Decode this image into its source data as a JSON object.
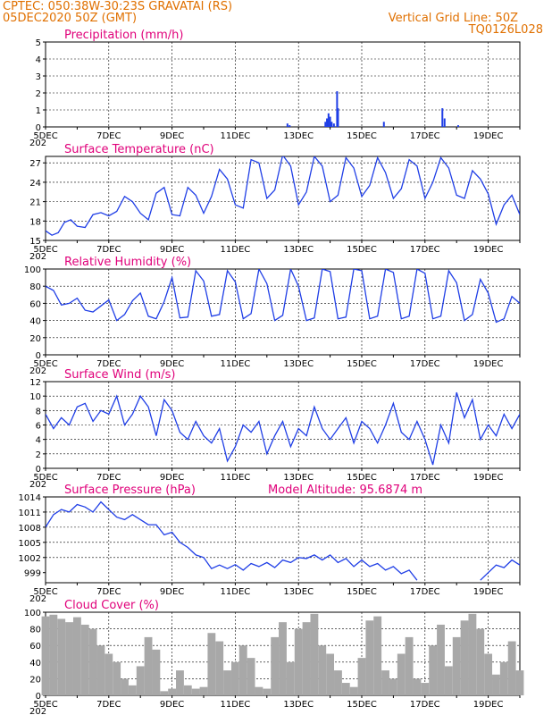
{
  "colors": {
    "header": "#e07000",
    "title": "#e0007a",
    "series": "#1f3ee6",
    "cloud": "#a8a8a8",
    "grid": "#000000"
  },
  "header": {
    "line1_left": "CPTEC:   050:38W-30:23S   GRAVATAI (RS)",
    "line2_left": "05DEC2020 50Z (GMT)",
    "line2_right": "Vertical Grid Line: 50Z",
    "line3_right": "TQ0126L028"
  },
  "x_tick_labels": [
    "5DEC",
    "7DEC",
    "9DEC",
    "11DEC",
    "13DEC",
    "15DEC",
    "17DEC",
    "19DEC"
  ],
  "x_sub_label": "202",
  "panels": {
    "precip": {
      "title": "Precipitation  (mm/h)",
      "ylim": [
        0,
        5
      ],
      "yticks": [
        "0",
        "1",
        "2",
        "3",
        "4",
        "5"
      ]
    },
    "temp": {
      "title": "Surface Temperature (nC)",
      "ylim": [
        15,
        28
      ],
      "yticks": [
        "15",
        "18",
        "21",
        "24",
        "27"
      ]
    },
    "rh": {
      "title": "Relative Humidity  (%)",
      "ylim": [
        0,
        100
      ],
      "yticks": [
        "0",
        "20",
        "40",
        "60",
        "80",
        "100"
      ]
    },
    "wind": {
      "title": "Surface Wind  (m/s)",
      "ylim": [
        0,
        12
      ],
      "yticks": [
        "0",
        "2",
        "4",
        "6",
        "8",
        "10",
        "12"
      ]
    },
    "pres": {
      "title": "Surface Pressure (hPa)",
      "altitude": "Model Altitude: 95.6874  m",
      "ylim": [
        997,
        1014
      ],
      "yticks": [
        "999",
        "1002",
        "1005",
        "1008",
        "1011",
        "1014"
      ]
    },
    "cloud": {
      "title": "Cloud Cover (%)",
      "ylim": [
        0,
        100
      ],
      "yticks": [
        "0",
        "20",
        "40",
        "60",
        "80",
        "100"
      ]
    }
  },
  "chart_data": [
    {
      "type": "bar",
      "title": "Precipitation  (mm/h)",
      "x_unit": "days since 5DEC",
      "x": [
        7.65,
        7.72,
        8.85,
        8.9,
        8.95,
        9.0,
        9.05,
        9.12,
        9.22,
        9.25,
        10.7,
        12.55,
        12.62,
        13.05
      ],
      "values": [
        0.2,
        0.1,
        0.3,
        0.5,
        0.8,
        0.6,
        0.3,
        0.2,
        2.1,
        1.1,
        0.3,
        1.1,
        0.5,
        0.1
      ],
      "ylim": [
        0,
        5
      ]
    },
    {
      "type": "line",
      "title": "Surface Temperature (nC)",
      "x_unit": "days since 5DEC",
      "x": [
        0,
        0.2,
        0.4,
        0.6,
        0.8,
        1.0,
        1.25,
        1.5,
        1.75,
        2.0,
        2.25,
        2.5,
        2.75,
        3.0,
        3.25,
        3.5,
        3.75,
        4.0,
        4.25,
        4.5,
        4.75,
        5.0,
        5.25,
        5.5,
        5.75,
        6.0,
        6.25,
        6.5,
        6.75,
        7.0,
        7.25,
        7.5,
        7.75,
        8.0,
        8.25,
        8.5,
        8.75,
        9.0,
        9.25,
        9.5,
        9.75,
        10.0,
        10.25,
        10.5,
        10.75,
        11.0,
        11.25,
        11.5,
        11.75,
        12.0,
        12.25,
        12.5,
        12.75,
        13.0,
        13.25,
        13.5,
        13.75,
        14.0,
        14.25,
        14.5,
        14.75,
        15.0
      ],
      "values": [
        16.5,
        15.8,
        16.2,
        17.8,
        18.2,
        17.2,
        17.0,
        19.0,
        19.3,
        18.8,
        19.5,
        21.8,
        21.0,
        19.2,
        18.2,
        22.3,
        23.2,
        19.0,
        18.8,
        23.2,
        22.0,
        19.2,
        21.8,
        26.0,
        24.5,
        20.5,
        20.0,
        27.5,
        27.0,
        21.5,
        22.8,
        28.2,
        26.5,
        20.5,
        22.5,
        28.0,
        26.5,
        21.0,
        22.0,
        27.8,
        26.2,
        21.8,
        23.5,
        27.8,
        25.5,
        21.5,
        23.0,
        27.5,
        26.5,
        21.5,
        24.0,
        27.8,
        26.2,
        22.0,
        21.5,
        25.8,
        24.5,
        22.2,
        17.5,
        20.5,
        22.0,
        19.0
      ],
      "ylim": [
        15,
        28
      ]
    },
    {
      "type": "line",
      "title": "Relative Humidity  (%)",
      "x_unit": "days since 5DEC",
      "x": [
        0,
        0.25,
        0.5,
        0.75,
        1.0,
        1.25,
        1.5,
        1.75,
        2.0,
        2.25,
        2.5,
        2.75,
        3.0,
        3.25,
        3.5,
        3.75,
        4.0,
        4.25,
        4.5,
        4.75,
        5.0,
        5.25,
        5.5,
        5.75,
        6.0,
        6.25,
        6.5,
        6.75,
        7.0,
        7.25,
        7.5,
        7.75,
        8.0,
        8.25,
        8.5,
        8.75,
        9.0,
        9.25,
        9.5,
        9.75,
        10.0,
        10.25,
        10.5,
        10.75,
        11.0,
        11.25,
        11.5,
        11.75,
        12.0,
        12.25,
        12.5,
        12.75,
        13.0,
        13.25,
        13.5,
        13.75,
        14.0,
        14.25,
        14.5,
        14.75,
        15.0
      ],
      "values": [
        80,
        75,
        58,
        60,
        66,
        52,
        50,
        57,
        64,
        40,
        47,
        63,
        72,
        45,
        42,
        62,
        90,
        43,
        44,
        98,
        86,
        45,
        47,
        98,
        85,
        42,
        48,
        100,
        83,
        40,
        46,
        100,
        80,
        40,
        43,
        100,
        97,
        42,
        44,
        100,
        98,
        42,
        45,
        100,
        96,
        42,
        45,
        100,
        95,
        42,
        45,
        98,
        84,
        40,
        47,
        88,
        72,
        38,
        42,
        68,
        60
      ],
      "ylim": [
        0,
        100
      ]
    },
    {
      "type": "line",
      "title": "Surface Wind  (m/s)",
      "x_unit": "days since 5DEC",
      "x": [
        0,
        0.25,
        0.5,
        0.75,
        1.0,
        1.25,
        1.5,
        1.75,
        2.0,
        2.25,
        2.5,
        2.75,
        3.0,
        3.25,
        3.5,
        3.75,
        4.0,
        4.25,
        4.5,
        4.75,
        5.0,
        5.25,
        5.5,
        5.75,
        6.0,
        6.25,
        6.5,
        6.75,
        7.0,
        7.25,
        7.5,
        7.75,
        8.0,
        8.25,
        8.5,
        8.75,
        9.0,
        9.25,
        9.5,
        9.75,
        10.0,
        10.25,
        10.5,
        10.75,
        11.0,
        11.25,
        11.5,
        11.75,
        12.0,
        12.25,
        12.5,
        12.75,
        13.0,
        13.25,
        13.5,
        13.75,
        14.0,
        14.25,
        14.5,
        14.75,
        15.0
      ],
      "values": [
        7.5,
        5.5,
        7.0,
        6.0,
        8.5,
        9.0,
        6.5,
        8.0,
        7.5,
        10.0,
        6.0,
        7.5,
        10.0,
        8.5,
        4.5,
        9.5,
        8.0,
        5.0,
        4.0,
        6.5,
        4.5,
        3.5,
        5.5,
        1.0,
        3.0,
        6.0,
        5.0,
        6.5,
        2.0,
        4.5,
        6.5,
        3.0,
        5.5,
        4.5,
        8.5,
        5.5,
        4.0,
        5.5,
        7.0,
        3.5,
        6.5,
        5.5,
        3.5,
        6.0,
        9.0,
        5.0,
        4.0,
        6.5,
        4.0,
        0.5,
        6.0,
        3.5,
        10.5,
        7.0,
        9.5,
        4.0,
        6.0,
        4.5,
        7.5,
        5.5,
        7.5
      ],
      "ylim": [
        0,
        12
      ]
    },
    {
      "type": "line",
      "title": "Surface Pressure (hPa)",
      "x_unit": "days since 5DEC",
      "x": [
        0,
        0.25,
        0.5,
        0.75,
        1.0,
        1.25,
        1.5,
        1.75,
        2.0,
        2.25,
        2.5,
        2.75,
        3.0,
        3.25,
        3.5,
        3.75,
        4.0,
        4.25,
        4.5,
        4.75,
        5.0,
        5.25,
        5.5,
        5.75,
        6.0,
        6.25,
        6.5,
        6.75,
        7.0,
        7.25,
        7.5,
        7.75,
        8.0,
        8.25,
        8.5,
        8.75,
        9.0,
        9.25,
        9.5,
        9.75,
        10.0,
        10.25,
        10.5,
        10.75,
        11.0,
        11.25,
        11.5,
        11.75,
        12.0,
        12.25,
        12.5,
        12.75,
        13.0,
        13.25,
        13.5,
        13.75,
        14.0,
        14.25,
        14.5,
        14.75,
        15.0
      ],
      "values": [
        1008,
        1010.5,
        1011.5,
        1011,
        1012.5,
        1012,
        1011,
        1013,
        1011.5,
        1010,
        1009.5,
        1010.5,
        1009.5,
        1008.5,
        1008.5,
        1006.5,
        1007,
        1005,
        1004,
        1002.5,
        1002,
        999.8,
        1000.5,
        999.8,
        1000.6,
        999.5,
        1000.8,
        1000.2,
        1001,
        1000,
        1001.5,
        1001,
        1002,
        1001.8,
        1002.5,
        1001.5,
        1002.5,
        1001,
        1001.8,
        1000.2,
        1001.5,
        1000.2,
        1000.8,
        999.5,
        1000.2,
        998.8,
        999.5,
        997.5,
        null,
        null,
        null,
        null,
        null,
        null,
        null,
        997.5,
        999,
        1000.5,
        1000,
        1001.5,
        1000.5
      ],
      "ylim": [
        997,
        1014
      ]
    },
    {
      "type": "bar",
      "title": "Cloud Cover (%)",
      "x_unit": "days since 5DEC",
      "x": [
        0,
        0.25,
        0.5,
        0.75,
        1.0,
        1.25,
        1.5,
        1.75,
        2.0,
        2.25,
        2.5,
        2.75,
        3.0,
        3.25,
        3.5,
        3.75,
        4.0,
        4.25,
        4.5,
        4.75,
        5.0,
        5.25,
        5.5,
        5.75,
        6.0,
        6.25,
        6.5,
        6.75,
        7.0,
        7.25,
        7.5,
        7.75,
        8.0,
        8.25,
        8.5,
        8.75,
        9.0,
        9.25,
        9.5,
        9.75,
        10.0,
        10.25,
        10.5,
        10.75,
        11.0,
        11.25,
        11.5,
        11.75,
        12.0,
        12.25,
        12.5,
        12.75,
        13.0,
        13.25,
        13.5,
        13.75,
        14.0,
        14.25,
        14.5,
        14.75,
        15.0
      ],
      "values": [
        95,
        97,
        92,
        88,
        94,
        85,
        80,
        60,
        50,
        40,
        20,
        12,
        35,
        70,
        55,
        5,
        8,
        30,
        12,
        8,
        10,
        75,
        65,
        30,
        40,
        60,
        45,
        10,
        8,
        70,
        88,
        40,
        80,
        88,
        98,
        60,
        50,
        30,
        15,
        10,
        45,
        90,
        95,
        30,
        20,
        50,
        70,
        20,
        15,
        60,
        85,
        35,
        70,
        90,
        98,
        80,
        50,
        25,
        40,
        65,
        30
      ],
      "ylim": [
        0,
        100
      ]
    }
  ]
}
